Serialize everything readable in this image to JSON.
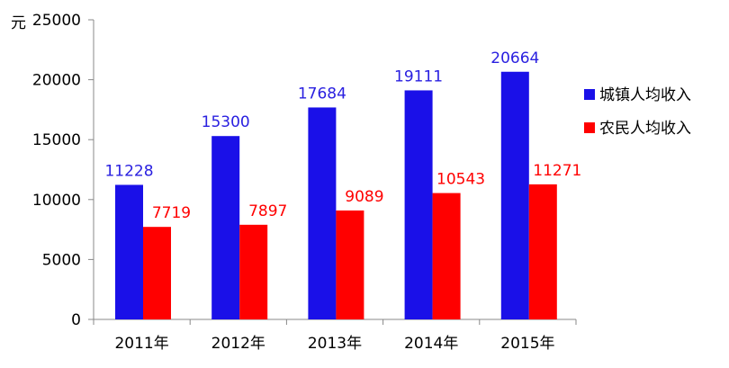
{
  "chart_data": {
    "type": "bar",
    "unit_label": "元",
    "categories": [
      "2011年",
      "2012年",
      "2013年",
      "2014年",
      "2015年"
    ],
    "series": [
      {
        "name": "城镇人均收入",
        "color": "#1a10e8",
        "label_color": "#2a20e0",
        "values": [
          11228,
          15300,
          17684,
          19111,
          20664
        ]
      },
      {
        "name": "农民人均收入",
        "color": "#ff0000",
        "label_color": "#ff0000",
        "values": [
          7719,
          7897,
          9089,
          10543,
          11271
        ]
      }
    ],
    "ylim": [
      0,
      25000
    ],
    "yticks": [
      0,
      5000,
      10000,
      15000,
      20000,
      25000
    ],
    "grid": false,
    "legend_position": "right"
  }
}
